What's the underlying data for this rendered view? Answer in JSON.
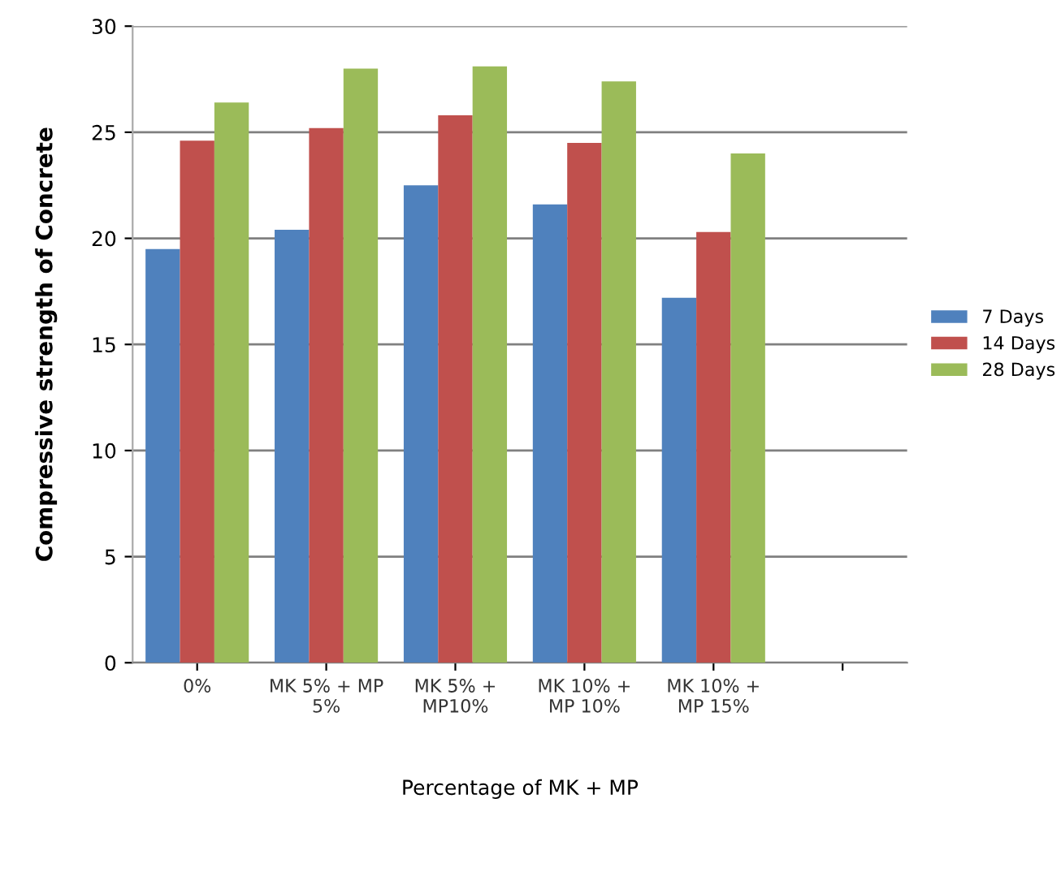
{
  "chart_data": {
    "type": "bar",
    "xlabel": "Percentage of MK + MP",
    "ylabel": "Compressive strength of Concrete",
    "categories": [
      "0%",
      "MK 5% + MP\n5%",
      "MK 5% +\nMP10%",
      "MK 10% +\nMP 10%",
      "MK 10% +\nMP 15%",
      null
    ],
    "series": [
      {
        "name": "7 Days",
        "color": "#4f81bd",
        "values": [
          19.5,
          20.4,
          22.5,
          21.6,
          17.2,
          null
        ]
      },
      {
        "name": "14 Days",
        "color": "#c0504d",
        "values": [
          24.6,
          25.2,
          25.8,
          24.5,
          20.3,
          null
        ]
      },
      {
        "name": "28 Days",
        "color": "#9bbb59",
        "values": [
          26.4,
          28.0,
          28.1,
          27.4,
          24.0,
          null
        ]
      }
    ],
    "ylim": [
      0,
      30
    ],
    "yticks": [
      0,
      5,
      10,
      15,
      20,
      25,
      30
    ],
    "grid": "y",
    "legend": "right"
  }
}
